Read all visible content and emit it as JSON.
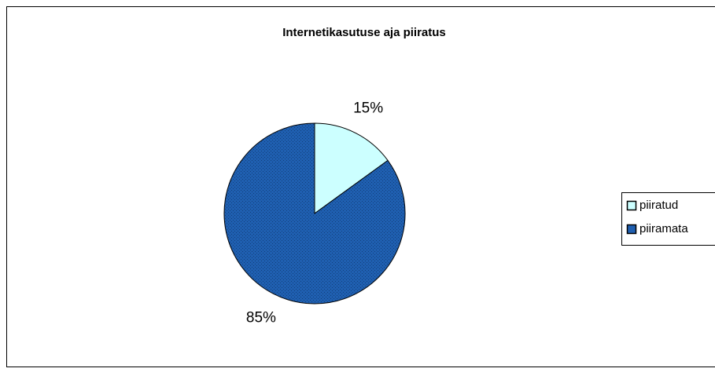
{
  "chart_data": {
    "type": "pie",
    "title": "Internetikasutuse aja piiratus",
    "categories": [
      "piiratud",
      "piiramata"
    ],
    "values": [
      15,
      85
    ],
    "value_labels": [
      "15%",
      "85%"
    ],
    "colors": [
      "#ccffff",
      "#1f5fb0"
    ],
    "legend": "right"
  }
}
